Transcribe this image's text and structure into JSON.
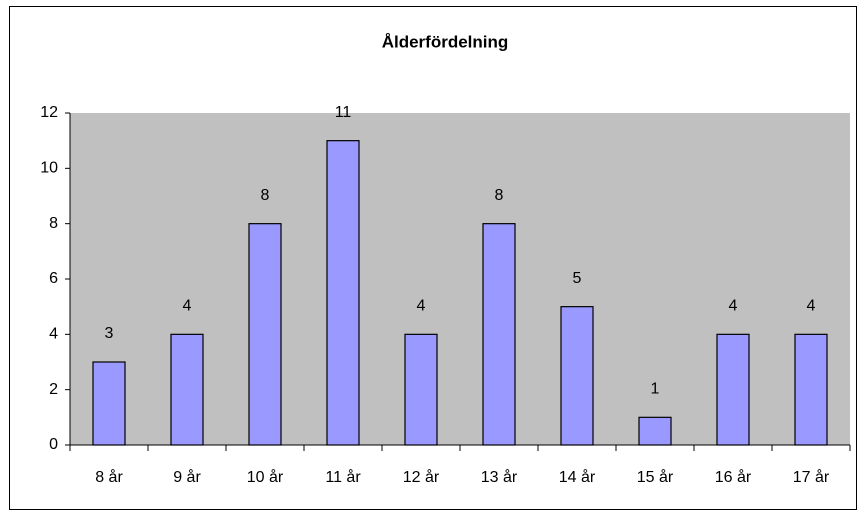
{
  "chart_data": {
    "type": "bar",
    "title": "Ålderfördelning",
    "categories": [
      "8 år",
      "9 år",
      "10 år",
      "11 år",
      "12 år",
      "13 år",
      "14 år",
      "15 år",
      "16 år",
      "17 år"
    ],
    "values": [
      3,
      4,
      8,
      11,
      4,
      8,
      5,
      1,
      4,
      4
    ],
    "color": "#9999ff",
    "plot_background": "#c0c0c0",
    "ylim": [
      0,
      12
    ],
    "yticks": [
      0,
      2,
      4,
      6,
      8,
      10,
      12
    ],
    "grid": false
  }
}
